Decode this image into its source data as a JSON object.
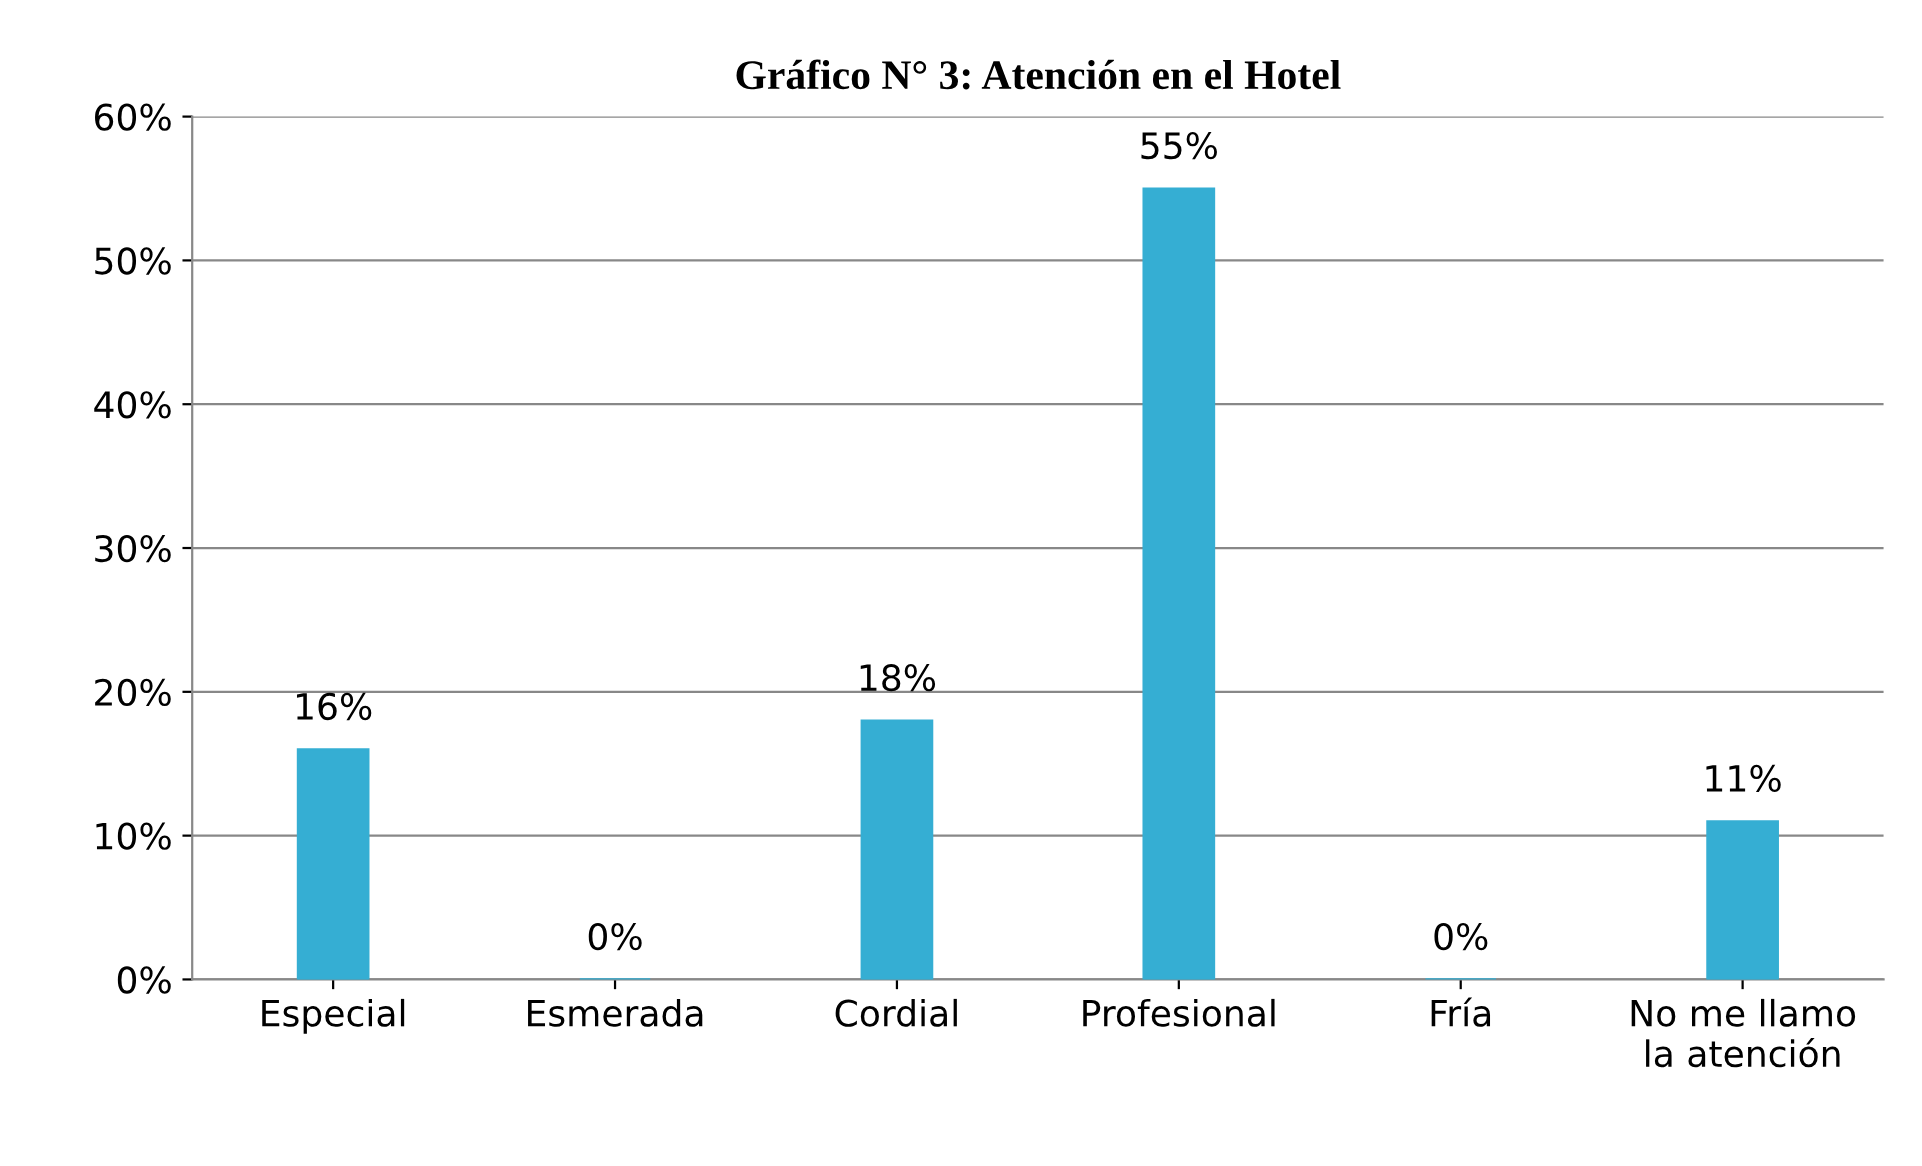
{
  "chart_data": {
    "type": "bar",
    "title": "Gráfico N° 3: Atención en el Hotel",
    "categories": [
      "Especial",
      "Esmerada",
      "Cordial",
      "Profesional",
      "Fría",
      "No me llamo\nla atención"
    ],
    "values": [
      16,
      0,
      18,
      55,
      0,
      11
    ],
    "value_labels": [
      "16%",
      "0%",
      "18%",
      "55%",
      "0%",
      "11%"
    ],
    "color": "#35aed3",
    "ylim": [
      0,
      60
    ],
    "yticks": [
      {
        "value": 0,
        "label": "0%"
      },
      {
        "value": 10,
        "label": "10%"
      },
      {
        "value": 20,
        "label": "20%"
      },
      {
        "value": 30,
        "label": "30%"
      },
      {
        "value": 40,
        "label": "40%"
      },
      {
        "value": 50,
        "label": "50%"
      },
      {
        "value": 60,
        "label": "60%"
      }
    ],
    "grid": "y"
  }
}
